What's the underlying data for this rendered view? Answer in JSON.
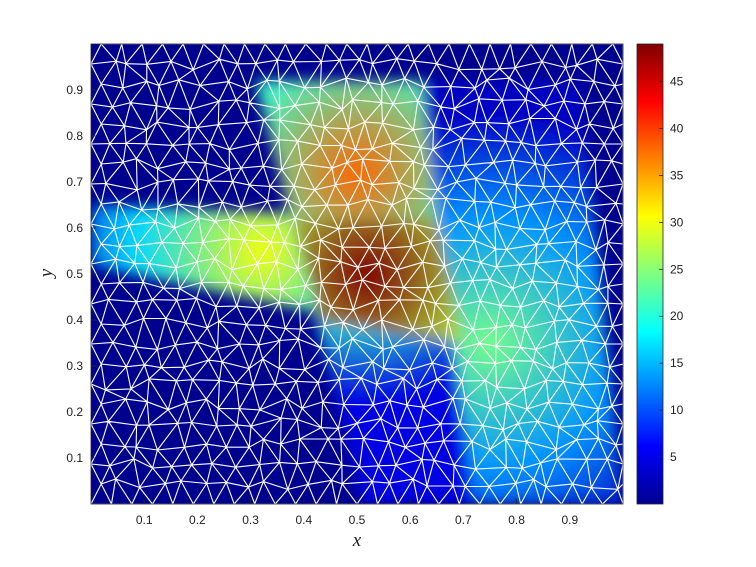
{
  "chart_data": {
    "type": "heatmap",
    "title": "",
    "xlabel": "x",
    "ylabel": "y",
    "xlim": [
      0,
      1
    ],
    "ylim": [
      0,
      1
    ],
    "grid": false,
    "mesh": "unstructured triangular mesh",
    "mesh_color": "#ffffff",
    "colormap": "jet",
    "x_ticks": [
      0.1,
      0.2,
      0.3,
      0.4,
      0.5,
      0.6,
      0.7,
      0.8,
      0.9
    ],
    "y_ticks": [
      0.1,
      0.2,
      0.3,
      0.4,
      0.5,
      0.6,
      0.7,
      0.8,
      0.9
    ],
    "x_tick_labels": [
      "0.1",
      "0.2",
      "0.3",
      "0.4",
      "0.5",
      "0.6",
      "0.7",
      "0.8",
      "0.9"
    ],
    "y_tick_labels": [
      "0.1",
      "0.2",
      "0.3",
      "0.4",
      "0.5",
      "0.6",
      "0.7",
      "0.8",
      "0.9"
    ],
    "colorbar": {
      "range": [
        0,
        49
      ],
      "ticks": [
        5,
        10,
        15,
        20,
        25,
        30,
        35,
        40,
        45
      ],
      "tick_labels": [
        "5",
        "10",
        "15",
        "20",
        "25",
        "30",
        "35",
        "40",
        "45"
      ]
    },
    "regions": [
      {
        "name": "horizontal band",
        "polygon": [
          [
            0.0,
            0.65
          ],
          [
            0.62,
            0.62
          ],
          [
            0.7,
            0.35
          ],
          [
            0.0,
            0.52
          ]
        ],
        "peak": 30,
        "peak_at": [
          0.32,
          0.55
        ]
      },
      {
        "name": "vertical band",
        "polygon": [
          [
            0.31,
            0.92
          ],
          [
            0.62,
            0.92
          ],
          [
            0.81,
            0.0
          ],
          [
            0.51,
            0.0
          ]
        ],
        "peak": 38,
        "peak_at": [
          0.5,
          0.72
        ]
      },
      {
        "name": "diagonal band",
        "polygon": [
          [
            0.62,
            0.92
          ],
          [
            0.92,
            0.92
          ],
          [
            1.0,
            0.0
          ],
          [
            0.72,
            0.0
          ]
        ],
        "peak": 24,
        "peak_at": [
          0.75,
          0.35
        ]
      },
      {
        "name": "central peak",
        "polygon": [
          [
            0.38,
            0.62
          ],
          [
            0.65,
            0.62
          ],
          [
            0.7,
            0.35
          ],
          [
            0.43,
            0.4
          ]
        ],
        "peak": 49,
        "peak_at": [
          0.52,
          0.5
        ]
      }
    ]
  }
}
